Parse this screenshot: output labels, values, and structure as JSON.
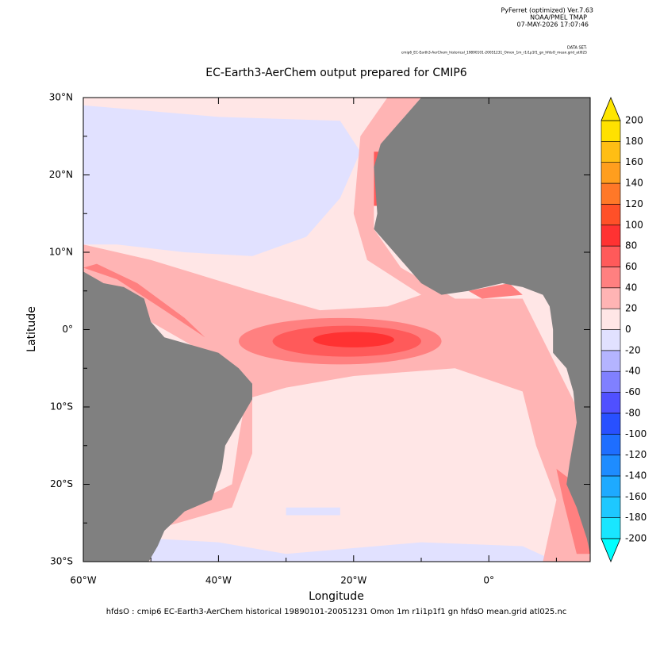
{
  "header": {
    "program": "PyFerret (optimized) Ver.7.63",
    "org": "NOAA/PMEL TMAP",
    "date": "07-MAY-2026 17:07:46",
    "dataset_label": "DATA SET:",
    "dataset": "cmip6_EC-Earth3-AerChem_historical_19890101-20051231_Omon_1m_r1i1p1f1_gn_hfdsO_mean.grid_atl025"
  },
  "title": "EC-Earth3-AerChem output prepared for CMIP6",
  "x_axis": {
    "label": "Longitude",
    "lim": [
      -60,
      15
    ],
    "ticks": [
      {
        "value": -60,
        "label": "60°W"
      },
      {
        "value": -40,
        "label": "40°W"
      },
      {
        "value": -20,
        "label": "20°W"
      },
      {
        "value": 0,
        "label": "0°"
      }
    ]
  },
  "y_axis": {
    "label": "Latitude",
    "lim": [
      -30,
      30
    ],
    "ticks": [
      {
        "value": 30,
        "label": "30°N"
      },
      {
        "value": 20,
        "label": "20°N"
      },
      {
        "value": 10,
        "label": "10°N"
      },
      {
        "value": 0,
        "label": "0°"
      },
      {
        "value": -10,
        "label": "10°S"
      },
      {
        "value": -20,
        "label": "20°S"
      },
      {
        "value": -30,
        "label": "30°S"
      }
    ]
  },
  "colorbar": {
    "levels": [
      -200,
      -180,
      -160,
      -140,
      -120,
      -100,
      -80,
      -60,
      -40,
      -20,
      0,
      20,
      40,
      60,
      80,
      100,
      120,
      140,
      160,
      180,
      200
    ],
    "colors": [
      "#19e6ff",
      "#1ec8ff",
      "#1eaaff",
      "#1e8cff",
      "#1e6eff",
      "#2850ff",
      "#5050ff",
      "#8080ff",
      "#b4b4ff",
      "#e1e1ff",
      "#ffe6e6",
      "#ffb4b4",
      "#ff8080",
      "#ff5a5a",
      "#ff3232",
      "#ff5028",
      "#ff7828",
      "#ff9e1e",
      "#ffbe14",
      "#ffe100"
    ],
    "under_color": "#00ffff",
    "over_color": "#ffe600"
  },
  "footer": "hfdsO : cmip6 EC-Earth3-AerChem historical 19890101-20051231 Omon 1m r1i1p1f1 gn hfdsO mean.grid atl025.nc"
}
